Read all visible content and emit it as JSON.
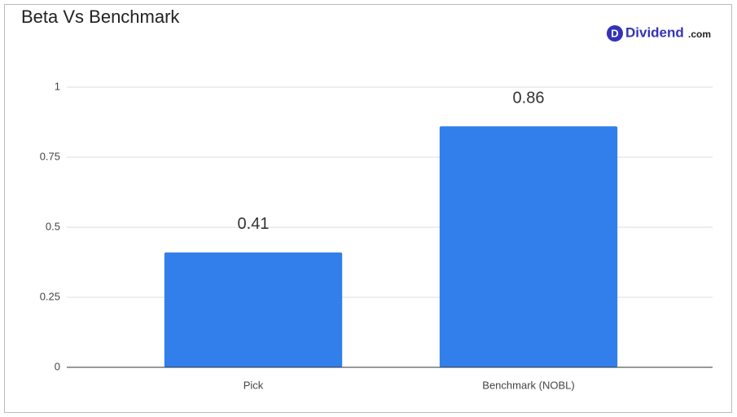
{
  "chart_data": {
    "type": "bar",
    "title": "Beta Vs Benchmark",
    "logo": {
      "mark": "D",
      "name": "Dividend",
      "domain": ".com"
    },
    "categories": [
      "Pick",
      "Benchmark (NOBL)"
    ],
    "values": [
      0.41,
      0.86
    ],
    "color": "#327fec",
    "ylim": [
      0,
      1
    ],
    "yticks": [
      0,
      0.25,
      0.5,
      0.75,
      1
    ],
    "grid": true
  }
}
